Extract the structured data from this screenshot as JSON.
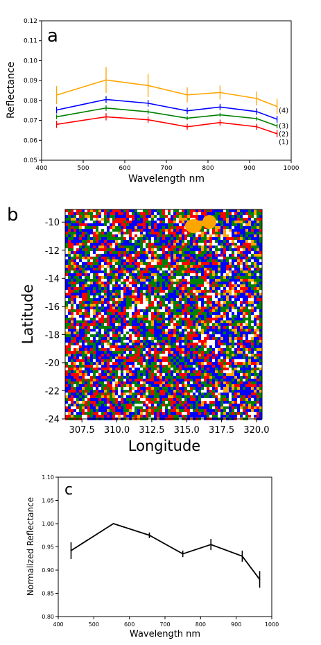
{
  "chart_data": [
    {
      "panel_label": "a",
      "type": "line",
      "xlabel": "Wavelength nm",
      "ylabel": "Reflectance",
      "xlim": [
        400,
        1000
      ],
      "ylim": [
        0.05,
        0.12
      ],
      "x_ticks": [
        "400",
        "500",
        "600",
        "700",
        "800",
        "900",
        "1000"
      ],
      "y_ticks": [
        "0.05",
        "0.06",
        "0.07",
        "0.08",
        "0.09",
        "0.10",
        "0.11",
        "0.12"
      ],
      "x": [
        436,
        555,
        656,
        750,
        829,
        917,
        966
      ],
      "series": [
        {
          "name": "(1)",
          "color": "#ff0000",
          "values": [
            0.068,
            0.0718,
            0.0703,
            0.0668,
            0.0689,
            0.0668,
            0.0633
          ],
          "errors": [
            0.0018,
            0.0018,
            0.0016,
            0.0015,
            0.0015,
            0.0015,
            0.0018
          ]
        },
        {
          "name": "(2)",
          "color": "#008000",
          "values": [
            0.0718,
            0.0762,
            0.0743,
            0.0711,
            0.0728,
            0.0709,
            0.0672
          ],
          "errors": [
            0.0012,
            0.0014,
            0.0012,
            0.001,
            0.001,
            0.001,
            0.0012
          ]
        },
        {
          "name": "(3)",
          "color": "#0000ff",
          "values": [
            0.0752,
            0.0805,
            0.0786,
            0.0748,
            0.0767,
            0.0744,
            0.0706
          ],
          "errors": [
            0.0017,
            0.0017,
            0.0017,
            0.0016,
            0.0016,
            0.0016,
            0.0017
          ]
        },
        {
          "name": "(4)",
          "color": "#ffa500",
          "values": [
            0.0827,
            0.0903,
            0.0875,
            0.0828,
            0.084,
            0.081,
            0.077
          ],
          "errors": [
            0.0045,
            0.0065,
            0.0058,
            0.0038,
            0.0035,
            0.0035,
            0.0038
          ]
        }
      ]
    },
    {
      "panel_label": "b",
      "type": "heatmap",
      "xlabel": "Longitude",
      "ylabel": "Latitude",
      "xlim": [
        306.3,
        320.4
      ],
      "ylim": [
        -24,
        -9.1
      ],
      "x_ticks": [
        "307.5",
        "310.0",
        "312.5",
        "315.0",
        "317.5",
        "320.0"
      ],
      "y_ticks": [
        "-10",
        "-12",
        "-14",
        "-16",
        "-18",
        "-20",
        "-22",
        "-24"
      ],
      "class_colors": [
        "#ff0000",
        "#008000",
        "#0000ff",
        "#ffa500",
        "#ffffff"
      ]
    },
    {
      "panel_label": "c",
      "type": "line",
      "xlabel": "Wavelength nm",
      "ylabel": "Normalized Reflectance",
      "xlim": [
        400,
        1000
      ],
      "ylim": [
        0.8,
        1.1
      ],
      "x_ticks": [
        "400",
        "500",
        "600",
        "700",
        "800",
        "900",
        "1000"
      ],
      "y_ticks": [
        "0.80",
        "0.85",
        "0.90",
        "0.95",
        "1.00",
        "1.05",
        "1.10"
      ],
      "x": [
        436,
        555,
        656,
        750,
        829,
        917,
        966
      ],
      "series": [
        {
          "color": "#000000",
          "values": [
            0.942,
            1.0,
            0.975,
            0.935,
            0.955,
            0.93,
            0.88
          ],
          "errors": [
            0.018,
            0.0,
            0.006,
            0.007,
            0.012,
            0.012,
            0.018
          ]
        }
      ]
    }
  ]
}
